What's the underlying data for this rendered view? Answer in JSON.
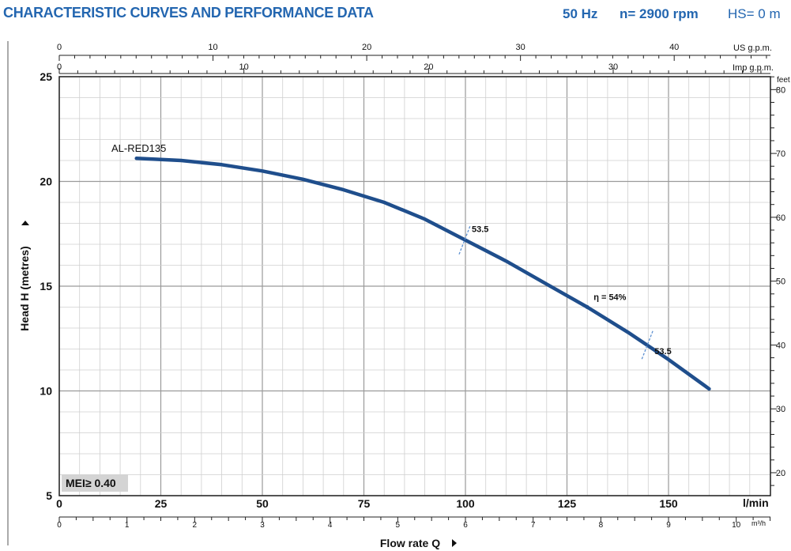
{
  "header": {
    "title": "CHARACTERISTIC CURVES AND PERFORMANCE DATA",
    "frequency": "50 Hz",
    "speed": "n= 2900 rpm",
    "hs": "HS= 0 m"
  },
  "chart_data": {
    "type": "line",
    "title": "CHARACTERISTIC CURVES AND PERFORMANCE DATA",
    "xlabel": "Flow rate  Q",
    "ylabel": "Head H (metres)",
    "xlim": [
      0,
      175
    ],
    "ylim": [
      5,
      25
    ],
    "grid": true,
    "x_axis": {
      "unit": "l/min",
      "major_ticks": [
        0,
        25,
        50,
        75,
        100,
        125,
        150
      ],
      "minor_step": 5
    },
    "y_axis": {
      "major_ticks": [
        5,
        10,
        15,
        20,
        25
      ],
      "minor_step": 1
    },
    "secondary_axes": {
      "us_gpm": {
        "label": "US g.p.m.",
        "ticks": [
          0,
          10,
          20,
          30,
          40
        ],
        "minor_step": 1,
        "per_unit_lmin": 3.785
      },
      "imp_gpm": {
        "label": "Imp g.p.m.",
        "ticks": [
          0,
          10,
          20,
          30
        ],
        "minor_step": 1,
        "per_unit_lmin": 4.546
      },
      "m3h": {
        "label": "m³/h",
        "ticks": [
          0,
          1,
          2,
          3,
          4,
          5,
          6,
          7,
          8,
          9,
          10
        ],
        "minor_step": 0.25,
        "per_unit_lmin": 16.667
      },
      "feet": {
        "label": "feet",
        "ticks": [
          20,
          30,
          40,
          50,
          60,
          70,
          80
        ],
        "minor_step": 2,
        "per_unit_m": 0.3048
      }
    },
    "series": [
      {
        "name": "AL-RED135",
        "x": [
          19,
          30,
          40,
          50,
          60,
          70,
          80,
          90,
          100,
          110,
          120,
          130,
          140,
          150,
          160
        ],
        "y": [
          21.1,
          21.0,
          20.8,
          20.5,
          20.1,
          19.6,
          19.0,
          18.2,
          17.2,
          16.2,
          15.1,
          14.0,
          12.8,
          11.5,
          10.1
        ]
      }
    ],
    "annotations": [
      {
        "text": "53.5",
        "x": 100,
        "y": 17.2
      },
      {
        "text": "η = 54%",
        "x": 130,
        "y": 14.0
      },
      {
        "text": "53.5",
        "x": 145,
        "y": 12.2
      }
    ],
    "badge": "MEI≥ 0.40"
  }
}
